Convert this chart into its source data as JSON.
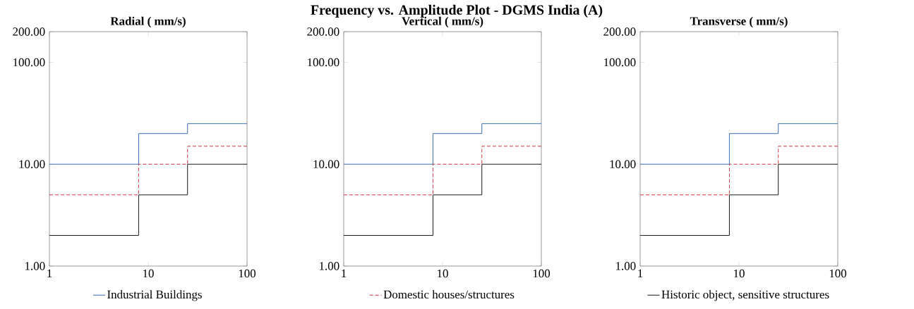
{
  "chart_data": [
    {
      "type": "step",
      "title": "Radial ( mm/s)",
      "annotations": [
        "Frequency vs. Amplitude Plot - DGMS India (A)"
      ],
      "log": "xy",
      "legend": "bottom",
      "xlim": [
        1,
        100
      ],
      "ylim": [
        1,
        200
      ],
      "xticks": [
        1,
        10,
        100
      ],
      "yticks": [
        {
          "value": 1,
          "label": "1.00"
        },
        {
          "value": 10,
          "label": "10.00"
        },
        {
          "value": 100,
          "label": "100.00"
        },
        {
          "value": 200,
          "label": "200.00"
        }
      ],
      "series": [
        {
          "name": "Industrial Buildings",
          "color": "#3a6fb0",
          "line_style": "solid",
          "x": [
            1,
            8,
            25,
            100
          ],
          "values": [
            10,
            20,
            25,
            25
          ]
        },
        {
          "color": "#c8323c",
          "line_style": "dashed",
          "x": [
            1,
            8,
            25,
            100
          ],
          "values": [
            5,
            10,
            15,
            15
          ]
        },
        {
          "color": "#1a1a1a",
          "line_style": "solid",
          "x": [
            1,
            8,
            25,
            100
          ],
          "values": [
            2,
            5,
            10,
            10
          ]
        }
      ]
    },
    {
      "type": "step",
      "title": "Vertical ( mm/s)",
      "log": "xy",
      "legend": "bottom",
      "xlim": [
        1,
        100
      ],
      "ylim": [
        1,
        200
      ],
      "xticks": [
        1,
        10,
        100
      ],
      "yticks": [
        {
          "value": 1,
          "label": "1.00"
        },
        {
          "value": 10,
          "label": "10.00"
        },
        {
          "value": 100,
          "label": "100.00"
        },
        {
          "value": 200,
          "label": "200.00"
        }
      ],
      "series": [
        {
          "color": "#3a6fb0",
          "line_style": "solid",
          "x": [
            1,
            8,
            25,
            100
          ],
          "values": [
            10,
            20,
            25,
            25
          ]
        },
        {
          "name": "Domestic houses/structures",
          "color": "#c8323c",
          "line_style": "dashed",
          "x": [
            1,
            8,
            25,
            100
          ],
          "values": [
            5,
            10,
            15,
            15
          ]
        },
        {
          "color": "#1a1a1a",
          "line_style": "solid",
          "x": [
            1,
            8,
            25,
            100
          ],
          "values": [
            2,
            5,
            10,
            10
          ]
        }
      ]
    },
    {
      "type": "step",
      "title": "Transverse ( mm/s)",
      "log": "xy",
      "legend": "bottom",
      "xlim": [
        1,
        100
      ],
      "ylim": [
        1,
        200
      ],
      "xticks": [
        1,
        10,
        100
      ],
      "yticks": [
        {
          "value": 1,
          "label": "1.00"
        },
        {
          "value": 10,
          "label": "10.00"
        },
        {
          "value": 100,
          "label": "100.00"
        },
        {
          "value": 200,
          "label": "200.00"
        }
      ],
      "series": [
        {
          "color": "#3a6fb0",
          "line_style": "solid",
          "x": [
            1,
            8,
            25,
            100
          ],
          "values": [
            10,
            20,
            25,
            25
          ]
        },
        {
          "color": "#c8323c",
          "line_style": "dashed",
          "x": [
            1,
            8,
            25,
            100
          ],
          "values": [
            5,
            10,
            15,
            15
          ]
        },
        {
          "name": "Historic object, sensitive structures",
          "color": "#1a1a1a",
          "line_style": "solid",
          "x": [
            1,
            8,
            25,
            100
          ],
          "values": [
            2,
            5,
            10,
            10
          ]
        }
      ]
    }
  ]
}
